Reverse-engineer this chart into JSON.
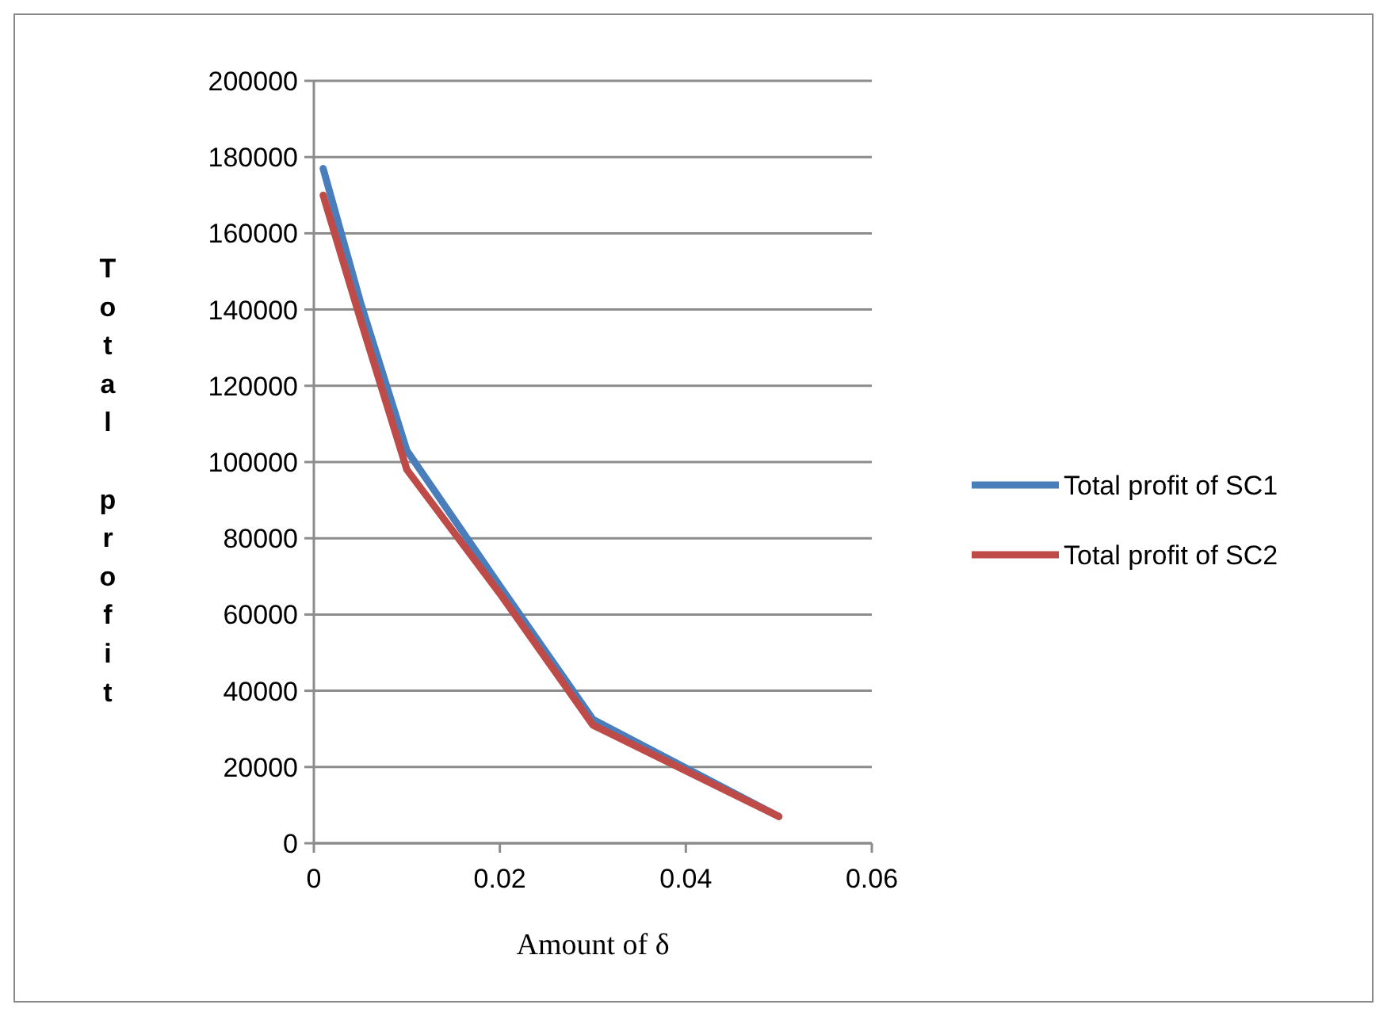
{
  "chart_data": {
    "type": "line",
    "xlabel": "Amount of δ",
    "ylabel": "Total profit",
    "xlim": [
      0,
      0.06
    ],
    "xticks": [
      0,
      0.02,
      0.04,
      0.06
    ],
    "ylim": [
      0,
      200000
    ],
    "yticks": [
      0,
      20000,
      40000,
      60000,
      80000,
      100000,
      120000,
      140000,
      160000,
      180000,
      200000
    ],
    "grid": "y",
    "legend": "right",
    "line_style": "solid",
    "series": [
      {
        "name": "Total profit of SC1",
        "color": "#4a7ebb",
        "x": [
          0.001,
          0.005,
          0.01,
          0.02,
          0.03,
          0.05
        ],
        "values": [
          177000,
          142000,
          103000,
          67500,
          32500,
          7000
        ]
      },
      {
        "name": "Total profit of SC2",
        "color": "#be4b48",
        "x": [
          0.001,
          0.005,
          0.01,
          0.02,
          0.03,
          0.05
        ],
        "values": [
          170000,
          137500,
          98000,
          65500,
          31000,
          7000
        ]
      }
    ]
  }
}
